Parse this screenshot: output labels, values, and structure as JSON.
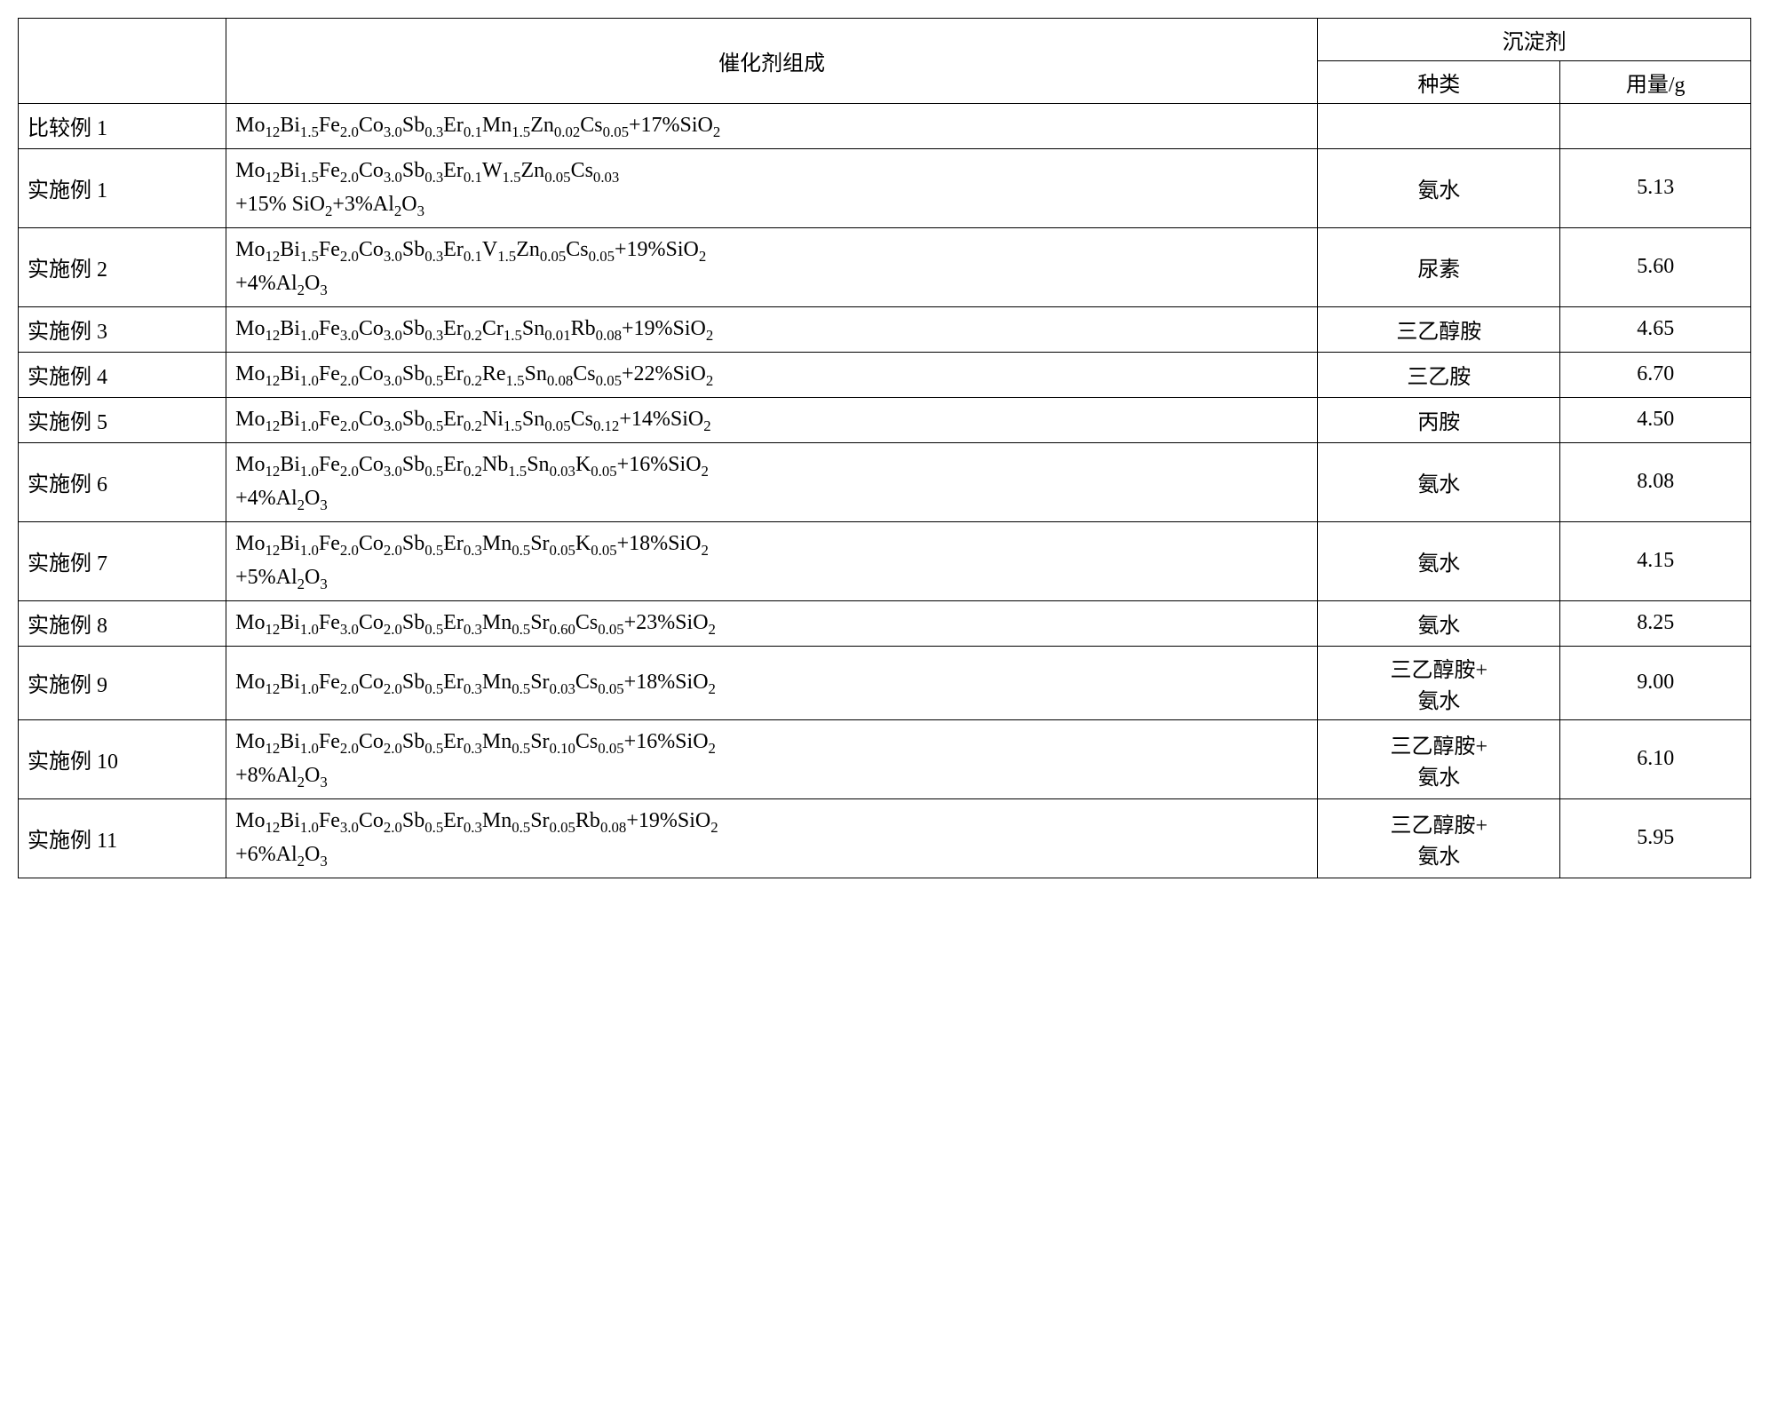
{
  "table": {
    "headers": {
      "blank": "",
      "composition": "催化剂组成",
      "precipitant_group": "沉淀剂",
      "precip_type": "种类",
      "precip_amount": "用量/g"
    },
    "rows": [
      {
        "label": "比较例 1",
        "comp_html": "Mo<sub>12</sub>Bi<sub>1.5</sub>Fe<sub>2.0</sub>Co<sub>3.0</sub>Sb<sub>0.3</sub>Er<sub>0.1</sub>Mn<sub>1.5</sub>Zn<sub>0.02</sub>Cs<sub>0.05</sub>+17%SiO<sub>2</sub>",
        "ptype": "",
        "pamt": ""
      },
      {
        "label": "实施例 1",
        "comp_html": "Mo<sub>12</sub>Bi<sub>1.5</sub>Fe<sub>2.0</sub>Co<sub>3.0</sub>Sb<sub>0.3</sub>Er<sub>0.1</sub>W<sub>1.5</sub>Zn<sub>0.05</sub>Cs<sub>0.03</sub><br>+15% SiO<sub>2</sub>+3%Al<sub>2</sub>O<sub>3</sub>",
        "ptype": "氨水",
        "pamt": "5.13"
      },
      {
        "label": "实施例 2",
        "comp_html": "Mo<sub>12</sub>Bi<sub>1.5</sub>Fe<sub>2.0</sub>Co<sub>3.0</sub>Sb<sub>0.3</sub>Er<sub>0.1</sub>V<sub>1.5</sub>Zn<sub>0.05</sub>Cs<sub>0.05</sub>+19%SiO<sub>2</sub><br>+4%Al<sub>2</sub>O<sub>3</sub>",
        "ptype": "尿素",
        "pamt": "5.60"
      },
      {
        "label": "实施例 3",
        "comp_html": "Mo<sub>12</sub>Bi<sub>1.0</sub>Fe<sub>3.0</sub>Co<sub>3.0</sub>Sb<sub>0.3</sub>Er<sub>0.2</sub>Cr<sub>1.5</sub>Sn<sub>0.01</sub>Rb<sub>0.08</sub>+19%SiO<sub>2</sub>",
        "ptype": "三乙醇胺",
        "pamt": "4.65"
      },
      {
        "label": "实施例 4",
        "comp_html": "Mo<sub>12</sub>Bi<sub>1.0</sub>Fe<sub>2.0</sub>Co<sub>3.0</sub>Sb<sub>0.5</sub>Er<sub>0.2</sub>Re<sub>1.5</sub>Sn<sub>0.08</sub>Cs<sub>0.05</sub>+22%SiO<sub>2</sub>",
        "ptype": "三乙胺",
        "pamt": "6.70"
      },
      {
        "label": "实施例 5",
        "comp_html": "Mo<sub>12</sub>Bi<sub>1.0</sub>Fe<sub>2.0</sub>Co<sub>3.0</sub>Sb<sub>0.5</sub>Er<sub>0.2</sub>Ni<sub>1.5</sub>Sn<sub>0.05</sub>Cs<sub>0.12</sub>+14%SiO<sub>2</sub>",
        "ptype": "丙胺",
        "pamt": "4.50"
      },
      {
        "label": "实施例 6",
        "comp_html": "Mo<sub>12</sub>Bi<sub>1.0</sub>Fe<sub>2.0</sub>Co<sub>3.0</sub>Sb<sub>0.5</sub>Er<sub>0.2</sub>Nb<sub>1.5</sub>Sn<sub>0.03</sub>K<sub>0.05</sub>+16%SiO<sub>2</sub><br>+4%Al<sub>2</sub>O<sub>3</sub>",
        "ptype": "氨水",
        "pamt": "8.08"
      },
      {
        "label": "实施例 7",
        "comp_html": "Mo<sub>12</sub>Bi<sub>1.0</sub>Fe<sub>2.0</sub>Co<sub>2.0</sub>Sb<sub>0.5</sub>Er<sub>0.3</sub>Mn<sub>0.5</sub>Sr<sub>0.05</sub>K<sub>0.05</sub>+18%SiO<sub>2</sub><br>+5%Al<sub>2</sub>O<sub>3</sub>",
        "ptype": "氨水",
        "pamt": "4.15"
      },
      {
        "label": "实施例 8",
        "comp_html": "Mo<sub>12</sub>Bi<sub>1.0</sub>Fe<sub>3.0</sub>Co<sub>2.0</sub>Sb<sub>0.5</sub>Er<sub>0.3</sub>Mn<sub>0.5</sub>Sr<sub>0.60</sub>Cs<sub>0.05</sub>+23%SiO<sub>2</sub>",
        "ptype": "氨水",
        "pamt": "8.25"
      },
      {
        "label": "实施例 9",
        "comp_html": "Mo<sub>12</sub>Bi<sub>1.0</sub>Fe<sub>2.0</sub>Co<sub>2.0</sub>Sb<sub>0.5</sub>Er<sub>0.3</sub>Mn<sub>0.5</sub>Sr<sub>0.03</sub>Cs<sub>0.05</sub>+18%SiO<sub>2</sub>",
        "ptype": "三乙醇胺+<br>氨水",
        "pamt": "9.00"
      },
      {
        "label": "实施例 10",
        "comp_html": "Mo<sub>12</sub>Bi<sub>1.0</sub>Fe<sub>2.0</sub>Co<sub>2.0</sub>Sb<sub>0.5</sub>Er<sub>0.3</sub>Mn<sub>0.5</sub>Sr<sub>0.10</sub>Cs<sub>0.05</sub>+16%SiO<sub>2</sub><br>+8%Al<sub>2</sub>O<sub>3</sub>",
        "ptype": "三乙醇胺+<br>氨水",
        "pamt": "6.10"
      },
      {
        "label": "实施例 11",
        "comp_html": "Mo<sub>12</sub>Bi<sub>1.0</sub>Fe<sub>3.0</sub>Co<sub>2.0</sub>Sb<sub>0.5</sub>Er<sub>0.3</sub>Mn<sub>0.5</sub>Sr<sub>0.05</sub>Rb<sub>0.08</sub>+19%SiO<sub>2</sub><br>+6%Al<sub>2</sub>O<sub>3</sub>",
        "ptype": "三乙醇胺+<br>氨水",
        "pamt": "5.95"
      }
    ]
  }
}
